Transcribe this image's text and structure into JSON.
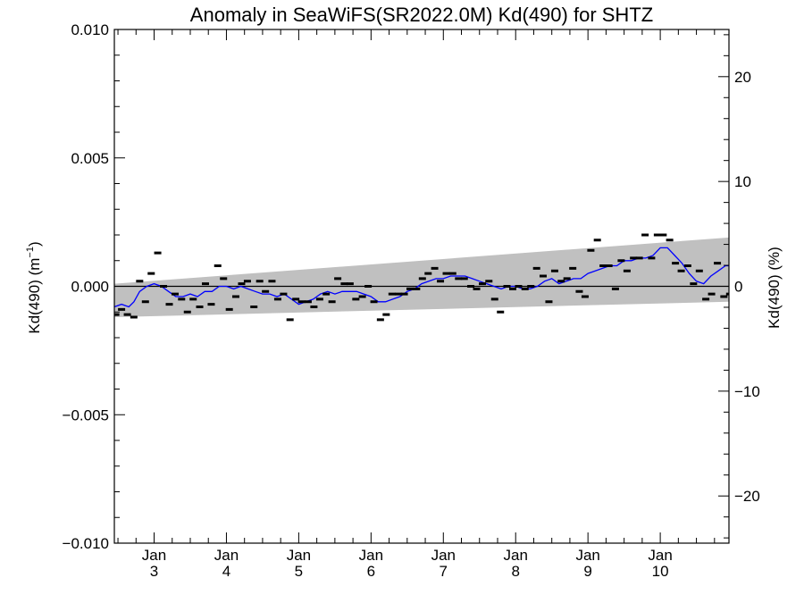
{
  "chart_data": {
    "type": "scatter",
    "title": "Anomaly in SeaWiFS(SR2022.0M) Kd(490) for SHTZ",
    "ylabel_left": "Kd(490) (m",
    "ylabel_left_sup": "−1",
    "ylabel_left_end": ")",
    "ylabel_right": "Kd(490) (%)",
    "ylim_left": [
      -0.01,
      0.01
    ],
    "ylim_right": [
      -24.5,
      24.5
    ],
    "xlim": [
      2.45,
      10.95
    ],
    "yticks_left": [
      {
        "v": 0.01,
        "label": "0.010"
      },
      {
        "v": 0.005,
        "label": "0.005"
      },
      {
        "v": 0.0,
        "label": "0.000"
      },
      {
        "v": -0.005,
        "label": "−0.005"
      },
      {
        "v": -0.01,
        "label": "−0.010"
      }
    ],
    "yticks_right": [
      {
        "v": 20,
        "label": "20"
      },
      {
        "v": 10,
        "label": "10"
      },
      {
        "v": 0,
        "label": "0"
      },
      {
        "v": -10,
        "label": "−10"
      },
      {
        "v": -20,
        "label": "−20"
      }
    ],
    "xticks": [
      {
        "v": 3,
        "month": "Jan",
        "year": "3"
      },
      {
        "v": 4,
        "month": "Jan",
        "year": "4"
      },
      {
        "v": 5,
        "month": "Jan",
        "year": "5"
      },
      {
        "v": 6,
        "month": "Jan",
        "year": "6"
      },
      {
        "v": 7,
        "month": "Jan",
        "year": "7"
      },
      {
        "v": 8,
        "month": "Jan",
        "year": "8"
      },
      {
        "v": 9,
        "month": "Jan",
        "year": "9"
      },
      {
        "v": 10,
        "month": "Jan",
        "year": "10"
      }
    ],
    "uncertainty_band": {
      "x": [
        2.45,
        10.95
      ],
      "upper": [
        0.0001,
        0.0019
      ],
      "lower": [
        -0.0012,
        -0.0006
      ],
      "color": "#c0c0c0"
    },
    "zero_line": true,
    "points": {
      "color": "#000000",
      "x": [
        2.47,
        2.55,
        2.63,
        2.72,
        2.8,
        2.88,
        2.96,
        3.05,
        3.13,
        3.21,
        3.29,
        3.38,
        3.46,
        3.54,
        3.63,
        3.71,
        3.79,
        3.88,
        3.96,
        4.04,
        4.13,
        4.21,
        4.29,
        4.38,
        4.46,
        4.54,
        4.63,
        4.71,
        4.79,
        4.88,
        4.96,
        5.04,
        5.13,
        5.21,
        5.29,
        5.38,
        5.46,
        5.54,
        5.63,
        5.71,
        5.79,
        5.88,
        5.96,
        6.04,
        6.13,
        6.21,
        6.29,
        6.38,
        6.46,
        6.54,
        6.63,
        6.71,
        6.79,
        6.88,
        6.96,
        7.04,
        7.13,
        7.21,
        7.29,
        7.38,
        7.46,
        7.54,
        7.63,
        7.71,
        7.79,
        7.88,
        7.96,
        8.04,
        8.13,
        8.21,
        8.29,
        8.38,
        8.46,
        8.54,
        8.63,
        8.71,
        8.79,
        8.88,
        8.96,
        9.04,
        9.13,
        9.21,
        9.29,
        9.38,
        9.46,
        9.54,
        9.63,
        9.71,
        9.79,
        9.88,
        9.96,
        10.04,
        10.13,
        10.21,
        10.29,
        10.38,
        10.46,
        10.54,
        10.63,
        10.71,
        10.79,
        10.88,
        10.96
      ],
      "y": [
        -0.0011,
        -0.0009,
        -0.0011,
        -0.0012,
        0.0002,
        -0.0006,
        0.0005,
        0.0013,
        0.0,
        -0.0007,
        -0.0003,
        -0.0005,
        -0.001,
        -0.0005,
        -0.0008,
        0.0001,
        -0.0007,
        0.0008,
        0.0003,
        -0.0009,
        -0.0004,
        0.0001,
        0.0002,
        -0.0008,
        0.0002,
        -0.0002,
        0.0002,
        -0.0005,
        -0.0003,
        -0.0013,
        -0.0005,
        -0.0006,
        -0.0006,
        -0.0008,
        -0.0005,
        -0.0003,
        -0.0006,
        0.0003,
        0.0001,
        0.0001,
        -0.0005,
        -0.0004,
        0.0,
        -0.0006,
        -0.0013,
        -0.0011,
        -0.0003,
        -0.0003,
        -0.0003,
        -0.0001,
        -0.0001,
        0.0003,
        0.0005,
        0.0007,
        0.0002,
        0.0005,
        0.0005,
        0.0003,
        0.0003,
        0.0,
        -0.0001,
        0.0001,
        0.0002,
        -0.0005,
        -0.001,
        0.0,
        -0.0001,
        0.0,
        -0.0001,
        0.0,
        0.0007,
        0.0004,
        -0.0006,
        0.0006,
        0.0002,
        0.0003,
        0.0007,
        -0.0002,
        -0.0004,
        0.0014,
        0.0018,
        0.0008,
        0.0008,
        -0.0001,
        0.001,
        0.0006,
        0.0011,
        0.0011,
        0.002,
        0.0011,
        0.002,
        0.002,
        0.0018,
        0.0009,
        0.0006,
        0.0008,
        0.0001,
        0.0006,
        -0.0005,
        -0.0003,
        0.0009,
        -0.0004,
        -0.0003
      ]
    },
    "smooth_line": {
      "color": "#0000ff",
      "x": [
        2.45,
        2.55,
        2.65,
        2.72,
        2.8,
        2.9,
        3.0,
        3.1,
        3.2,
        3.3,
        3.4,
        3.5,
        3.6,
        3.7,
        3.8,
        3.9,
        4.0,
        4.1,
        4.2,
        4.3,
        4.4,
        4.5,
        4.6,
        4.7,
        4.8,
        4.9,
        5.0,
        5.1,
        5.2,
        5.3,
        5.4,
        5.5,
        5.6,
        5.7,
        5.8,
        5.9,
        6.0,
        6.1,
        6.2,
        6.3,
        6.4,
        6.5,
        6.6,
        6.7,
        6.8,
        6.9,
        7.0,
        7.1,
        7.2,
        7.3,
        7.4,
        7.5,
        7.6,
        7.7,
        7.8,
        7.9,
        8.0,
        8.1,
        8.2,
        8.3,
        8.4,
        8.5,
        8.6,
        8.7,
        8.8,
        8.9,
        9.0,
        9.1,
        9.2,
        9.3,
        9.4,
        9.5,
        9.6,
        9.7,
        9.8,
        9.9,
        10.0,
        10.1,
        10.2,
        10.3,
        10.4,
        10.5,
        10.6,
        10.7,
        10.8,
        10.9,
        10.95
      ],
      "y": [
        -0.0008,
        -0.0007,
        -0.0008,
        -0.0006,
        -0.0002,
        0.0,
        0.0001,
        0.0,
        -0.0002,
        -0.0004,
        -0.0004,
        -0.0003,
        -0.0004,
        -0.0002,
        -0.0002,
        0.0,
        0.0,
        -0.0001,
        0.0,
        -0.0001,
        -0.0002,
        -0.0003,
        -0.0003,
        -0.0004,
        -0.0003,
        -0.0005,
        -0.0007,
        -0.0006,
        -0.0005,
        -0.0003,
        -0.0002,
        -0.0003,
        -0.0002,
        -0.0002,
        -0.0002,
        -0.0003,
        -0.0004,
        -0.0006,
        -0.0006,
        -0.0005,
        -0.0004,
        -0.0002,
        -0.0001,
        0.0001,
        0.0002,
        0.0003,
        0.0003,
        0.0004,
        0.0004,
        0.0004,
        0.0003,
        0.0002,
        0.0001,
        0.0,
        -0.0001,
        0.0,
        0.0,
        -0.0001,
        -0.0001,
        0.0,
        0.0002,
        0.0003,
        0.0001,
        0.0002,
        0.0003,
        0.0003,
        0.0005,
        0.0006,
        0.0007,
        0.0008,
        0.0008,
        0.001,
        0.001,
        0.0011,
        0.0011,
        0.0012,
        0.0015,
        0.0015,
        0.0012,
        0.0009,
        0.0005,
        0.0002,
        0.0001,
        0.0004,
        0.0006,
        0.0008,
        0.0008
      ]
    }
  }
}
